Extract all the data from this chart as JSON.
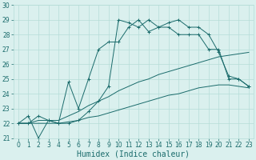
{
  "xlabel": "Humidex (Indice chaleur)",
  "x": [
    0,
    1,
    2,
    3,
    4,
    5,
    6,
    7,
    8,
    9,
    10,
    11,
    12,
    13,
    14,
    15,
    16,
    17,
    18,
    19,
    20,
    21,
    22,
    23
  ],
  "line1": [
    22.0,
    22.5,
    21.0,
    22.2,
    22.0,
    22.0,
    22.2,
    22.8,
    23.5,
    24.5,
    29.0,
    28.8,
    28.5,
    29.0,
    28.5,
    28.8,
    29.0,
    28.5,
    28.5,
    28.0,
    26.8,
    25.2,
    25.0,
    24.5
  ],
  "line2": [
    22.0,
    22.0,
    22.5,
    22.2,
    22.0,
    24.8,
    23.0,
    25.0,
    27.0,
    27.5,
    27.5,
    28.5,
    29.0,
    28.2,
    28.5,
    28.5,
    28.0,
    28.0,
    28.0,
    27.0,
    27.0,
    25.0,
    25.0,
    24.5
  ],
  "line3": [
    22.0,
    22.0,
    22.2,
    22.2,
    22.2,
    22.5,
    22.8,
    23.2,
    23.5,
    23.8,
    24.2,
    24.5,
    24.8,
    25.0,
    25.3,
    25.5,
    25.7,
    25.9,
    26.1,
    26.3,
    26.5,
    26.6,
    26.7,
    26.8
  ],
  "line4": [
    22.0,
    22.0,
    22.0,
    22.0,
    22.0,
    22.1,
    22.2,
    22.4,
    22.5,
    22.7,
    22.9,
    23.1,
    23.3,
    23.5,
    23.7,
    23.9,
    24.0,
    24.2,
    24.4,
    24.5,
    24.6,
    24.6,
    24.5,
    24.4
  ],
  "ylim": [
    21,
    30
  ],
  "xlim": [
    -0.5,
    23.5
  ],
  "color": "#1a6b6b",
  "bg_color": "#daf0ee",
  "grid_color": "#b5ddd8",
  "tick_fontsize": 5.5,
  "label_fontsize": 7
}
